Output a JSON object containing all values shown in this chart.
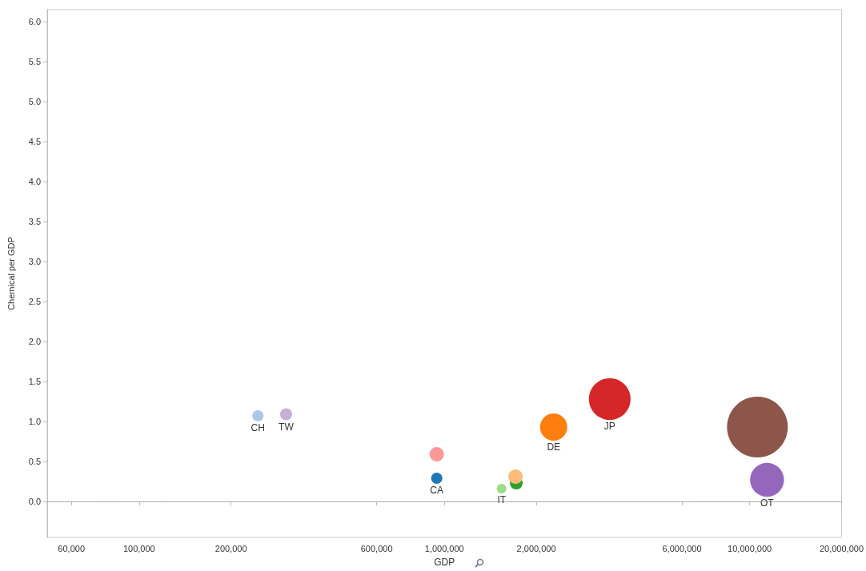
{
  "chart_data": {
    "type": "bubble",
    "xlabel": "GDP",
    "ylabel": "Chemical per GDP",
    "log": "x",
    "legend": false,
    "grid": false,
    "xlim": [
      50000,
      20000000
    ],
    "xticks": [
      {
        "value": 60000,
        "label": "60,000"
      },
      {
        "value": 100000,
        "label": "100,000"
      },
      {
        "value": 200000,
        "label": "200,000"
      },
      {
        "value": 600000,
        "label": "600,000"
      },
      {
        "value": 1000000,
        "label": "1,000,000"
      },
      {
        "value": 2000000,
        "label": "2,000,000"
      },
      {
        "value": 6000000,
        "label": "6,000,000"
      },
      {
        "value": 10000000,
        "label": "10,000,000"
      },
      {
        "value": 20000000,
        "label": "20,000,000"
      }
    ],
    "ylim": [
      -0.45,
      6.15
    ],
    "yticks": [
      {
        "value": 0,
        "label": "0.0"
      },
      {
        "value": 0.5,
        "label": "0.5"
      },
      {
        "value": 1,
        "label": "1.0"
      },
      {
        "value": 1.5,
        "label": "1.5"
      },
      {
        "value": 2,
        "label": "2.0"
      },
      {
        "value": 2.5,
        "label": "2.5"
      },
      {
        "value": 3,
        "label": "3.0"
      },
      {
        "value": 3.5,
        "label": "3.5"
      },
      {
        "value": 4,
        "label": "4.0"
      },
      {
        "value": 4.5,
        "label": "4.5"
      },
      {
        "value": 5,
        "label": "5.0"
      },
      {
        "value": 5.5,
        "label": "5.5"
      },
      {
        "value": 6,
        "label": "6.0"
      }
    ],
    "ref_lines": [
      {
        "axis": "y",
        "value": 0,
        "color": "#999999",
        "line_style": "dotted"
      }
    ],
    "series": [
      {
        "name": "CH",
        "color": "#aec7e8",
        "x": [
          245000
        ],
        "values": [
          1.07
        ],
        "sizes": [
          0.034
        ]
      },
      {
        "name": "TW",
        "color": "#c5b0d5",
        "x": [
          303000
        ],
        "values": [
          1.09
        ],
        "sizes": [
          0.039
        ]
      },
      {
        "color": "#ff9896",
        "x": [
          944000
        ],
        "values": [
          0.59
        ],
        "sizes": [
          0.056
        ]
      },
      {
        "name": "CA",
        "color": "#1f77b4",
        "x": [
          944000
        ],
        "values": [
          0.29
        ],
        "sizes": [
          0.034
        ]
      },
      {
        "name": "IT",
        "color": "#98df8a",
        "x": [
          1540000
        ],
        "values": [
          0.16
        ],
        "sizes": [
          0.025
        ]
      },
      {
        "color": "#2ca02c",
        "x": [
          1720000
        ],
        "values": [
          0.23
        ],
        "sizes": [
          0.044
        ]
      },
      {
        "color": "#ffbb78",
        "x": [
          1710000
        ],
        "values": [
          0.31
        ],
        "sizes": [
          0.056
        ]
      },
      {
        "name": "DE",
        "color": "#ff7f0e",
        "x": [
          2280000
        ],
        "values": [
          0.93
        ],
        "sizes": [
          0.2
        ]
      },
      {
        "name": "JP",
        "color": "#d62728",
        "x": [
          3480000
        ],
        "values": [
          1.28
        ],
        "sizes": [
          0.47
        ]
      },
      {
        "color": "#8c564b",
        "x": [
          10600000
        ],
        "values": [
          0.93
        ],
        "sizes": [
          1
        ]
      },
      {
        "name": "OT",
        "color": "#9467bd",
        "x": [
          11400000
        ],
        "values": [
          0.27
        ],
        "sizes": [
          0.31
        ]
      }
    ]
  }
}
